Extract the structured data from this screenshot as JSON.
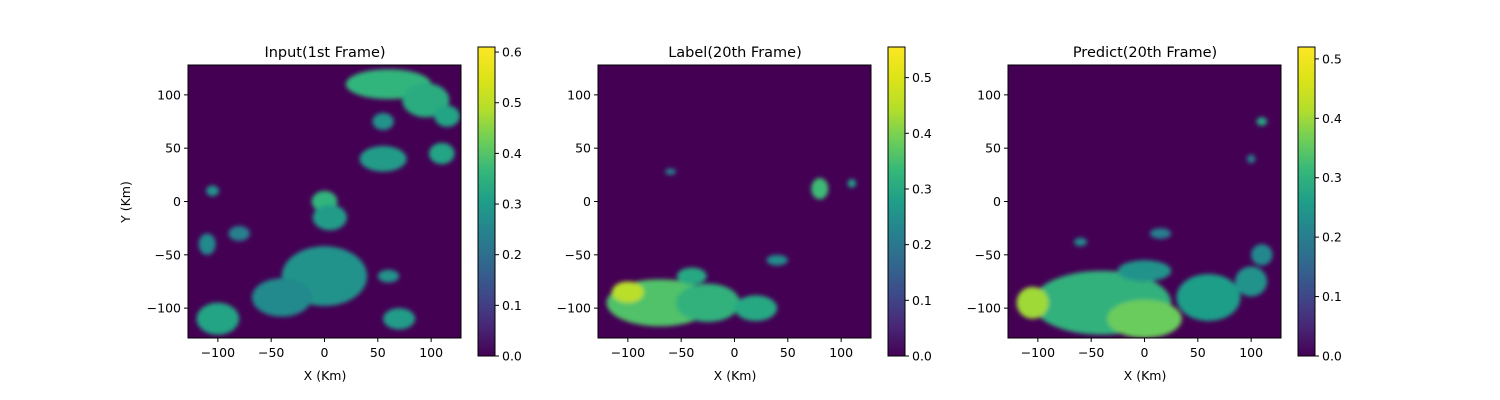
{
  "chart_data": [
    {
      "type": "heatmap",
      "title": "Input(1st Frame)",
      "xlabel": "X (Km)",
      "ylabel": "Y (Km)",
      "xlim": [
        -128,
        128
      ],
      "ylim": [
        -128,
        128
      ],
      "x_ticks": [
        -100,
        -50,
        0,
        50,
        100
      ],
      "y_ticks": [
        100,
        50,
        0,
        -50,
        -100
      ],
      "x_tick_labels": [
        "−100",
        "−50",
        "0",
        "50",
        "100"
      ],
      "y_tick_labels": [
        "100",
        "50",
        "0",
        "−50",
        "−100"
      ],
      "colormap": "viridis",
      "colorbar": {
        "min": 0.0,
        "max": 0.61,
        "ticks": [
          0.0,
          0.1,
          0.2,
          0.3,
          0.4,
          0.5,
          0.6
        ],
        "tick_labels": [
          "0.0",
          "0.1",
          "0.2",
          "0.3",
          "0.4",
          "0.5",
          "0.6"
        ]
      },
      "background_value": 0.0,
      "echo_regions": [
        {
          "x": 60,
          "y": 110,
          "rx": 40,
          "ry": 14,
          "value": 0.36
        },
        {
          "x": 95,
          "y": 95,
          "rx": 22,
          "ry": 16,
          "value": 0.34
        },
        {
          "x": 115,
          "y": 80,
          "rx": 12,
          "ry": 10,
          "value": 0.32
        },
        {
          "x": 55,
          "y": 40,
          "rx": 22,
          "ry": 12,
          "value": 0.3
        },
        {
          "x": 110,
          "y": 45,
          "rx": 12,
          "ry": 10,
          "value": 0.32
        },
        {
          "x": 55,
          "y": 75,
          "rx": 10,
          "ry": 8,
          "value": 0.28
        },
        {
          "x": 0,
          "y": 0,
          "rx": 12,
          "ry": 10,
          "value": 0.36
        },
        {
          "x": 5,
          "y": -15,
          "rx": 16,
          "ry": 12,
          "value": 0.3
        },
        {
          "x": 0,
          "y": -70,
          "rx": 40,
          "ry": 28,
          "value": 0.28
        },
        {
          "x": -40,
          "y": -90,
          "rx": 28,
          "ry": 18,
          "value": 0.26
        },
        {
          "x": -100,
          "y": -110,
          "rx": 20,
          "ry": 15,
          "value": 0.32
        },
        {
          "x": -80,
          "y": -30,
          "rx": 10,
          "ry": 7,
          "value": 0.24
        },
        {
          "x": -110,
          "y": -40,
          "rx": 8,
          "ry": 10,
          "value": 0.26
        },
        {
          "x": -105,
          "y": 10,
          "rx": 6,
          "ry": 5,
          "value": 0.28
        },
        {
          "x": 70,
          "y": -110,
          "rx": 15,
          "ry": 10,
          "value": 0.3
        },
        {
          "x": 60,
          "y": -70,
          "rx": 10,
          "ry": 6,
          "value": 0.28
        }
      ]
    },
    {
      "type": "heatmap",
      "title": "Label(20th Frame)",
      "xlabel": "X (Km)",
      "ylabel": "",
      "xlim": [
        -128,
        128
      ],
      "ylim": [
        -128,
        128
      ],
      "x_ticks": [
        -100,
        -50,
        0,
        50,
        100
      ],
      "y_ticks": [
        100,
        50,
        0,
        -50,
        -100
      ],
      "x_tick_labels": [
        "−100",
        "−50",
        "0",
        "50",
        "100"
      ],
      "y_tick_labels": [
        "100",
        "50",
        "0",
        "−50",
        "−100"
      ],
      "colormap": "viridis",
      "colorbar": {
        "min": 0.0,
        "max": 0.555,
        "ticks": [
          0.0,
          0.1,
          0.2,
          0.3,
          0.4,
          0.5
        ],
        "tick_labels": [
          "0.0",
          "0.1",
          "0.2",
          "0.3",
          "0.4",
          "0.5"
        ]
      },
      "background_value": 0.0,
      "echo_regions": [
        {
          "x": -70,
          "y": -95,
          "rx": 50,
          "ry": 22,
          "value": 0.36
        },
        {
          "x": -100,
          "y": -85,
          "rx": 15,
          "ry": 10,
          "value": 0.45
        },
        {
          "x": -25,
          "y": -95,
          "rx": 30,
          "ry": 18,
          "value": 0.32
        },
        {
          "x": 20,
          "y": -100,
          "rx": 20,
          "ry": 12,
          "value": 0.3
        },
        {
          "x": -40,
          "y": -70,
          "rx": 14,
          "ry": 8,
          "value": 0.3
        },
        {
          "x": 80,
          "y": 12,
          "rx": 8,
          "ry": 10,
          "value": 0.34
        },
        {
          "x": 110,
          "y": 17,
          "rx": 4,
          "ry": 4,
          "value": 0.28
        },
        {
          "x": -60,
          "y": 28,
          "rx": 5,
          "ry": 3,
          "value": 0.22
        },
        {
          "x": 40,
          "y": -55,
          "rx": 10,
          "ry": 5,
          "value": 0.24
        }
      ]
    },
    {
      "type": "heatmap",
      "title": "Predict(20th Frame)",
      "xlabel": "X (Km)",
      "ylabel": "",
      "xlim": [
        -128,
        128
      ],
      "ylim": [
        -128,
        128
      ],
      "x_ticks": [
        -100,
        -50,
        0,
        50,
        100
      ],
      "y_ticks": [
        100,
        50,
        0,
        -50,
        -100
      ],
      "x_tick_labels": [
        "−100",
        "−50",
        "0",
        "50",
        "100"
      ],
      "y_tick_labels": [
        "100",
        "50",
        "0",
        "−50",
        "−100"
      ],
      "colormap": "viridis",
      "colorbar": {
        "min": 0.0,
        "max": 0.52,
        "ticks": [
          0.0,
          0.1,
          0.2,
          0.3,
          0.4,
          0.5
        ],
        "tick_labels": [
          "0.0",
          "0.1",
          "0.2",
          "0.3",
          "0.4",
          "0.5"
        ]
      },
      "background_value": 0.0,
      "echo_regions": [
        {
          "x": -40,
          "y": -95,
          "rx": 65,
          "ry": 30,
          "value": 0.3
        },
        {
          "x": 0,
          "y": -110,
          "rx": 35,
          "ry": 18,
          "value": 0.36
        },
        {
          "x": -105,
          "y": -95,
          "rx": 15,
          "ry": 15,
          "value": 0.4
        },
        {
          "x": 60,
          "y": -90,
          "rx": 30,
          "ry": 22,
          "value": 0.26
        },
        {
          "x": 100,
          "y": -75,
          "rx": 15,
          "ry": 14,
          "value": 0.24
        },
        {
          "x": 0,
          "y": -65,
          "rx": 25,
          "ry": 10,
          "value": 0.24
        },
        {
          "x": 110,
          "y": -50,
          "rx": 10,
          "ry": 10,
          "value": 0.22
        },
        {
          "x": 110,
          "y": 75,
          "rx": 5,
          "ry": 4,
          "value": 0.28
        },
        {
          "x": 15,
          "y": -30,
          "rx": 10,
          "ry": 5,
          "value": 0.2
        },
        {
          "x": -60,
          "y": -38,
          "rx": 6,
          "ry": 4,
          "value": 0.22
        },
        {
          "x": 100,
          "y": 40,
          "rx": 4,
          "ry": 4,
          "value": 0.2
        }
      ]
    }
  ]
}
